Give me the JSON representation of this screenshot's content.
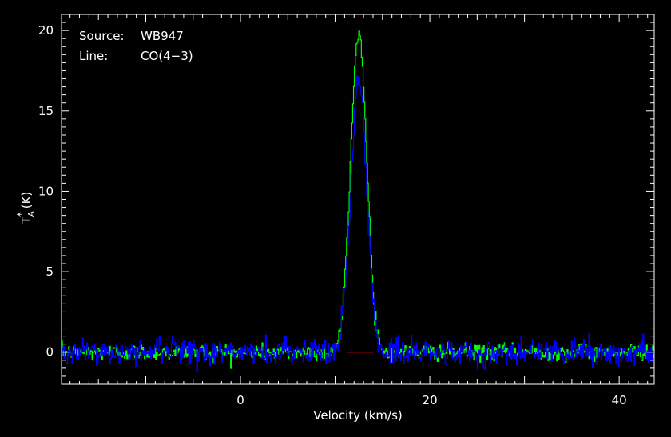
{
  "chart_data": {
    "type": "line",
    "title": "",
    "xlabel": "Velocity (km/s)",
    "ylabel_main": "T",
    "ylabel_sub": "A",
    "ylabel_sup": "*",
    "ylabel_unit": "(K)",
    "xlim": [
      -18.9,
      43.7
    ],
    "ylim": [
      -2.0,
      21.0
    ],
    "xticks": [
      0,
      20,
      40
    ],
    "xtick_labels": [
      "0",
      "20",
      "40"
    ],
    "yticks": [
      0,
      5,
      10,
      15,
      20
    ],
    "ytick_labels": [
      "0",
      "5",
      "10",
      "15",
      "20"
    ],
    "grid": false,
    "annotations": [
      {
        "key": "Source:",
        "value": "WB947"
      },
      {
        "key": "Line:",
        "value": "CO(4−3)"
      }
    ],
    "series": [
      {
        "color": "#00ff00",
        "peak_x": 12.5,
        "peak_y": 19.9,
        "sigma": 0.85,
        "noise_rms": 0.25
      },
      {
        "color": "#0000ff",
        "peak_x": 12.5,
        "peak_y": 17.0,
        "sigma": 0.85,
        "noise_rms": 0.4
      }
    ],
    "baseline": {
      "color": "#cc0000",
      "x": [
        11.2,
        14.0
      ],
      "y": 0
    }
  }
}
